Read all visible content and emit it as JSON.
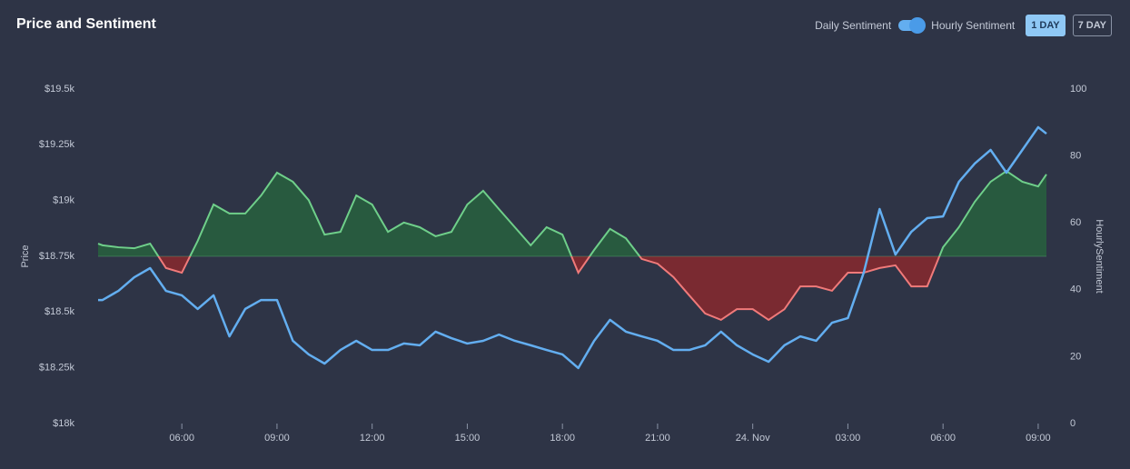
{
  "chart_data": {
    "type": "line",
    "title": "Price and Sentiment",
    "x": [
      -20.64,
      -20.5,
      -20,
      -19.5,
      -19,
      -18.5,
      -18,
      -17.5,
      -17,
      -16.5,
      -16,
      -15.5,
      -15,
      -14.5,
      -14,
      -13.5,
      -13,
      -12.5,
      -12,
      -11.5,
      -11,
      -10.5,
      -10,
      -9.5,
      -9,
      -8.5,
      -8,
      -7.5,
      -7,
      -6.5,
      -6,
      -5.5,
      -5,
      -4.5,
      -4,
      -3.5,
      -3,
      -2.5,
      -2,
      -1.5,
      -1,
      -0.5,
      0,
      0.5,
      1,
      1.5,
      2,
      2.5,
      3,
      3.5,
      4,
      4.5,
      5,
      5.5,
      6,
      6.5,
      7,
      7.5,
      8,
      8.5,
      9,
      9.26
    ],
    "series": [
      {
        "name": "Price",
        "color": "#63aef0",
        "axis": "y",
        "values": [
          18554,
          18554,
          18595,
          18656,
          18697,
          18595,
          18575,
          18514,
          18575,
          18391,
          18514,
          18554,
          18554,
          18371,
          18310,
          18269,
          18330,
          18371,
          18330,
          18330,
          18359,
          18351,
          18412,
          18383,
          18359,
          18371,
          18399,
          18371,
          18351,
          18330,
          18310,
          18249,
          18371,
          18465,
          18412,
          18391,
          18371,
          18330,
          18330,
          18351,
          18412,
          18351,
          18310,
          18277,
          18351,
          18391,
          18371,
          18452,
          18473,
          18677,
          18962,
          18758,
          18860,
          18921,
          18929,
          19084,
          19166,
          19227,
          19125,
          19227,
          19329,
          19300
        ]
      },
      {
        "name": "HourlySentiment",
        "color": "#6fcf8a",
        "negative_color": "#f07a7a",
        "fill": "#285a3f",
        "negative_fill": "#7a2a31",
        "axis": "y2",
        "values": [
          53.8,
          53.3,
          52.7,
          52.4,
          53.8,
          46.5,
          45.1,
          54.6,
          65.5,
          62.8,
          62.8,
          68.2,
          75.0,
          72.3,
          66.8,
          56.5,
          57.3,
          68.2,
          65.5,
          57.3,
          60.1,
          58.7,
          56.0,
          57.3,
          65.5,
          69.6,
          64.1,
          58.7,
          53.3,
          58.7,
          56.5,
          45.1,
          51.9,
          58.2,
          55.4,
          49.2,
          47.8,
          43.8,
          38.3,
          32.9,
          31.0,
          34.2,
          34.2,
          31.0,
          34.2,
          41.0,
          41.0,
          39.7,
          45.1,
          45.1,
          46.5,
          47.3,
          41.0,
          41.0,
          52.7,
          58.7,
          66.3,
          72.3,
          75.5,
          72.3,
          70.9,
          74.5
        ]
      }
    ],
    "xlim": [
      -20.64,
      9.26
    ],
    "xticks": [
      {
        "value": -18,
        "label": "06:00"
      },
      {
        "value": -15,
        "label": "09:00"
      },
      {
        "value": -12,
        "label": "12:00"
      },
      {
        "value": -9,
        "label": "15:00"
      },
      {
        "value": -6,
        "label": "18:00"
      },
      {
        "value": -3,
        "label": "21:00"
      },
      {
        "value": 0,
        "label": "24. Nov"
      },
      {
        "value": 3,
        "label": "03:00"
      },
      {
        "value": 6,
        "label": "06:00"
      },
      {
        "value": 9,
        "label": "09:00"
      }
    ],
    "ylim": [
      18000,
      19500
    ],
    "yticks": [
      {
        "value": 18000,
        "label": "$18k"
      },
      {
        "value": 18250,
        "label": "$18.25k"
      },
      {
        "value": 18500,
        "label": "$18.5k"
      },
      {
        "value": 18750,
        "label": "$18.75k"
      },
      {
        "value": 19000,
        "label": "$19k"
      },
      {
        "value": 19250,
        "label": "$19.25k"
      },
      {
        "value": 19500,
        "label": "$19.5k"
      }
    ],
    "y2lim": [
      0,
      100
    ],
    "y2ticks": [
      0,
      20,
      40,
      60,
      80,
      100
    ],
    "y2threshold": 50,
    "ylabel": "Price",
    "y2label": "HourlySentiment",
    "grid": false
  },
  "controls": {
    "toggle_left": "Daily Sentiment",
    "toggle_right": "Hourly Sentiment",
    "ranges": [
      "1 DAY",
      "7 DAY"
    ],
    "active_range": 0
  }
}
